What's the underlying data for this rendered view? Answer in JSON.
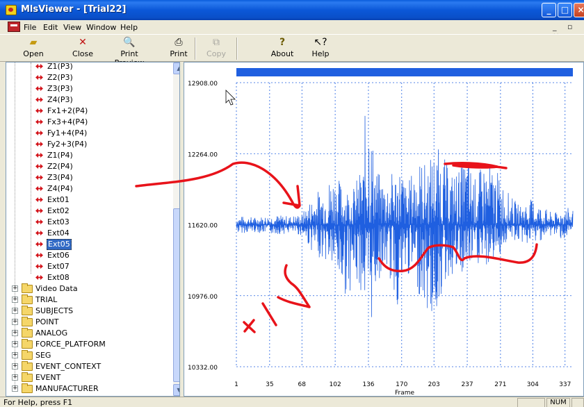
{
  "window": {
    "title": "MlsViewer - [Trial22]"
  },
  "menu": [
    "File",
    "Edit",
    "View",
    "Window",
    "Help"
  ],
  "toolbar": [
    {
      "label": "Open",
      "icon": "open-folder-icon",
      "enabled": true
    },
    {
      "label": "Close",
      "icon": "close-x-icon",
      "enabled": true
    },
    {
      "label": "Print Preview",
      "icon": "print-preview-icon",
      "enabled": true
    },
    {
      "label": "Print",
      "icon": "printer-icon",
      "enabled": true
    },
    {
      "label": "Copy",
      "icon": "copy-icon",
      "enabled": false
    },
    {
      "label": "About",
      "icon": "about-question-icon",
      "enabled": true
    },
    {
      "label": "Help",
      "icon": "help-pointer-icon",
      "enabled": true
    }
  ],
  "tree": {
    "channels": [
      "Z1(P3)",
      "Z2(P3)",
      "Z3(P3)",
      "Z4(P3)",
      "Fx1+2(P4)",
      "Fx3+4(P4)",
      "Fy1+4(P4)",
      "Fy2+3(P4)",
      "Z1(P4)",
      "Z2(P4)",
      "Z3(P4)",
      "Z4(P4)",
      "Ext01",
      "Ext02",
      "Ext03",
      "Ext04",
      "Ext05",
      "Ext06",
      "Ext07",
      "Ext08"
    ],
    "selected": "Ext05",
    "folders": [
      "Video Data",
      "TRIAL",
      "SUBJECTS",
      "POINT",
      "ANALOG",
      "FORCE_PLATFORM",
      "SEG",
      "EVENT_CONTEXT",
      "EVENT",
      "MANUFACTURER"
    ]
  },
  "status": {
    "help_text": "For Help, press F1",
    "num": "NUM"
  },
  "colors": {
    "signal": "#1f5fe0",
    "annotation": "#e8131a",
    "progress": "#1f5fe0",
    "selection": "#316ac5"
  },
  "chart_data": {
    "type": "line",
    "xlabel": "Frame",
    "ylabel": "",
    "x_ticks": [
      "1",
      "35",
      "68",
      "102",
      "136",
      "170",
      "203",
      "237",
      "271",
      "304",
      "337"
    ],
    "y_ticks": [
      "12908.00",
      "12264.00",
      "11620.00",
      "10976.00",
      "10332.00"
    ],
    "xlim": [
      1,
      345
    ],
    "ylim": [
      10332,
      12908
    ],
    "baseline": 11620,
    "grid": true,
    "series": [
      {
        "x": [
          1,
          20,
          40,
          55,
          68,
          80,
          90,
          100,
          110,
          120,
          131,
          133,
          136,
          139,
          145,
          155,
          165,
          170,
          175,
          185,
          195,
          203,
          210,
          220,
          230,
          237,
          245,
          255,
          265,
          271,
          280,
          290,
          304,
          315,
          325,
          337,
          345
        ],
        "hi": [
          11700,
          11690,
          11710,
          11700,
          11720,
          11900,
          11980,
          12100,
          12000,
          11950,
          12200,
          12760,
          12950,
          12500,
          12100,
          12050,
          12150,
          12180,
          11950,
          12250,
          12180,
          12310,
          12320,
          12100,
          12150,
          12280,
          12050,
          12200,
          12150,
          12050,
          11900,
          11800,
          11860,
          11780,
          11720,
          11780,
          11760
        ],
        "lo": [
          11540,
          11550,
          11530,
          11540,
          11520,
          11350,
          11300,
          11200,
          10950,
          11050,
          11000,
          10600,
          10345,
          10700,
          11100,
          11200,
          10850,
          10900,
          11150,
          11050,
          10800,
          10700,
          10950,
          11150,
          11100,
          11150,
          11250,
          11200,
          11300,
          11350,
          11500,
          11450,
          11440,
          11490,
          11520,
          11480,
          11500
        ]
      }
    ]
  }
}
